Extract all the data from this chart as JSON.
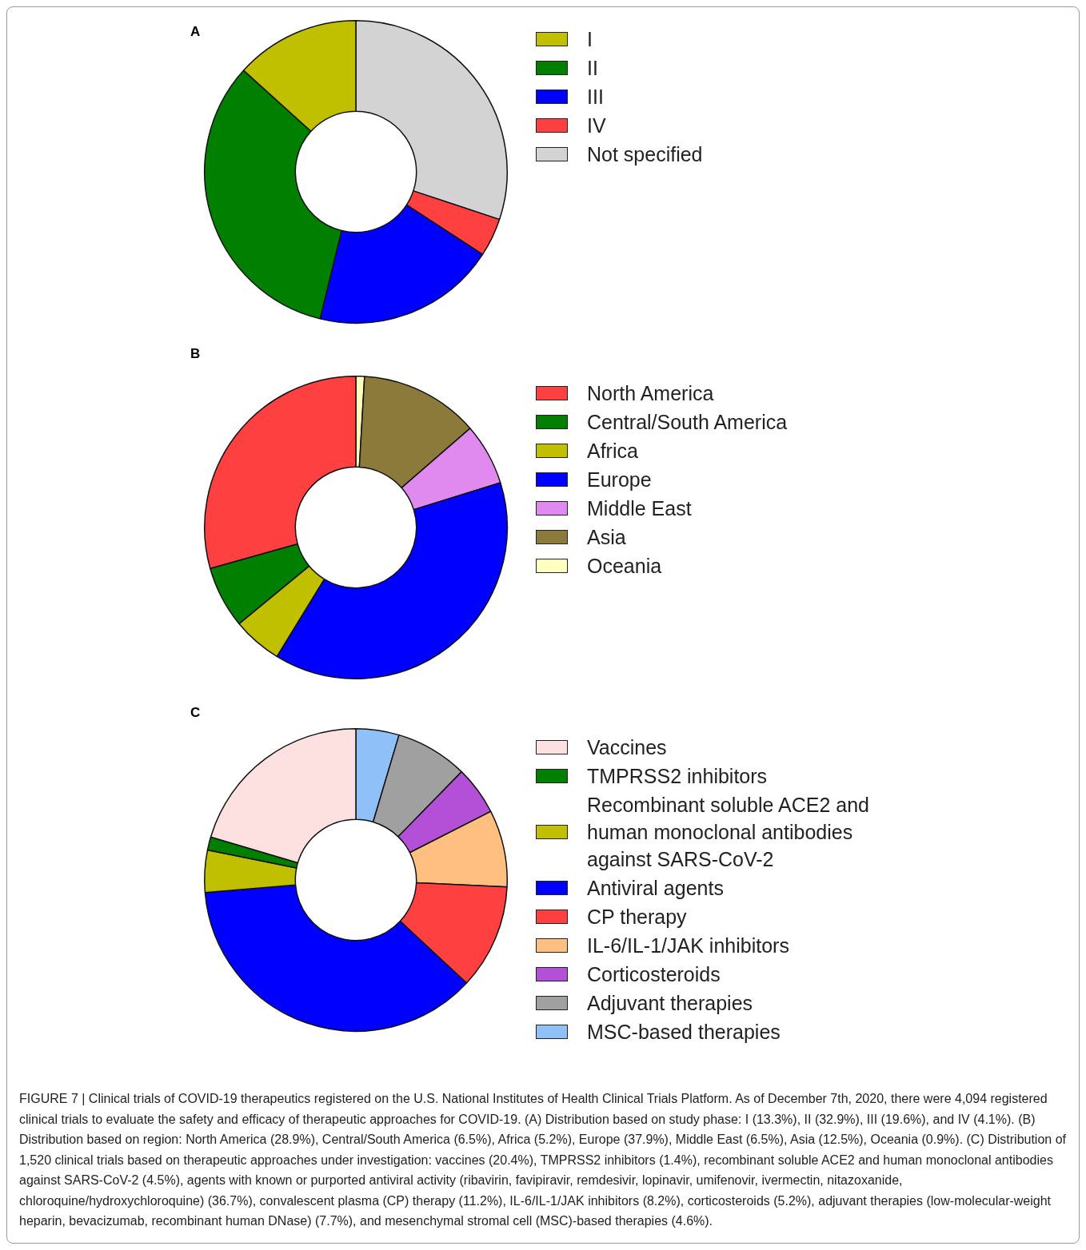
{
  "chart_data": [
    {
      "type": "donut",
      "title": "A",
      "legend": "right",
      "categories": [
        "I",
        "II",
        "III",
        "IV",
        "Not specified"
      ],
      "values": [
        13.3,
        32.9,
        19.6,
        4.1,
        30.1
      ],
      "colors": [
        "#c0c000",
        "#007f00",
        "#0000ff",
        "#ff4040",
        "#d3d3d3"
      ]
    },
    {
      "type": "donut",
      "title": "B",
      "legend": "right",
      "categories": [
        "North America",
        "Central/South America",
        "Africa",
        "Europe",
        "Middle East",
        "Asia",
        "Oceania"
      ],
      "values": [
        28.9,
        6.5,
        5.2,
        37.9,
        6.5,
        12.5,
        0.9
      ],
      "colors": [
        "#ff4040",
        "#007f00",
        "#c0c000",
        "#0000ff",
        "#e08af0",
        "#8b7a3a",
        "#ffffc0"
      ]
    },
    {
      "type": "donut",
      "title": "C",
      "legend": "right",
      "categories": [
        "Vaccines",
        "TMPRSS2 inhibitors",
        "Recombinant soluble ACE2 and human monoclonal antibodies against SARS-CoV-2",
        "Antiviral agents",
        "CP therapy",
        "IL-6/IL-1/JAK inhibitors",
        "Corticosteroids",
        "Adjuvant therapies",
        "MSC-based therapies"
      ],
      "values": [
        20.4,
        1.4,
        4.5,
        36.7,
        11.2,
        8.2,
        5.2,
        7.7,
        4.6
      ],
      "colors": [
        "#fde0e0",
        "#007f00",
        "#c0c000",
        "#0000ff",
        "#ff4040",
        "#ffbf80",
        "#b450d8",
        "#a0a0a0",
        "#90c0f8"
      ],
      "annotations": [
        "FIGURE 7 | Clinical trials of COVID-19 therapeutics registered on the U.S. National Institutes of Health Clinical Trials Platform. As of December 7th, 2020, there were 4,094 registered clinical trials to evaluate the safety and efficacy of therapeutic approaches for COVID-19. (A) Distribution based on study phase: I (13.3%), II (32.9%), III (19.6%), and IV (4.1%). (B) Distribution based on region: North America (28.9%), Central/South America (6.5%), Africa (5.2%), Europe (37.9%), Middle East (6.5%), Asia (12.5%), Oceania (0.9%). (C) Distribution of 1,520 clinical trials based on therapeutic approaches under investigation: vaccines (20.4%), TMPRSS2 inhibitors (1.4%), recombinant soluble ACE2 and human monoclonal antibodies against SARS-CoV-2 (4.5%), agents with known or purported antiviral activity (ribavirin, favipiravir, remdesivir, lopinavir, umifenovir, ivermectin, nitazoxanide, chloroquine/hydroxychloroquine) (36.7%), convalescent plasma (CP) therapy (11.2%), IL-6/IL-1/JAK inhibitors (8.2%), corticosteroids (5.2%), adjuvant therapies (low-molecular-weight heparin, bevacizumab, recombinant human DNase) (7.7%), and mesenchymal stromal cell (MSC)-based therapies (4.6%)."
      ]
    }
  ]
}
